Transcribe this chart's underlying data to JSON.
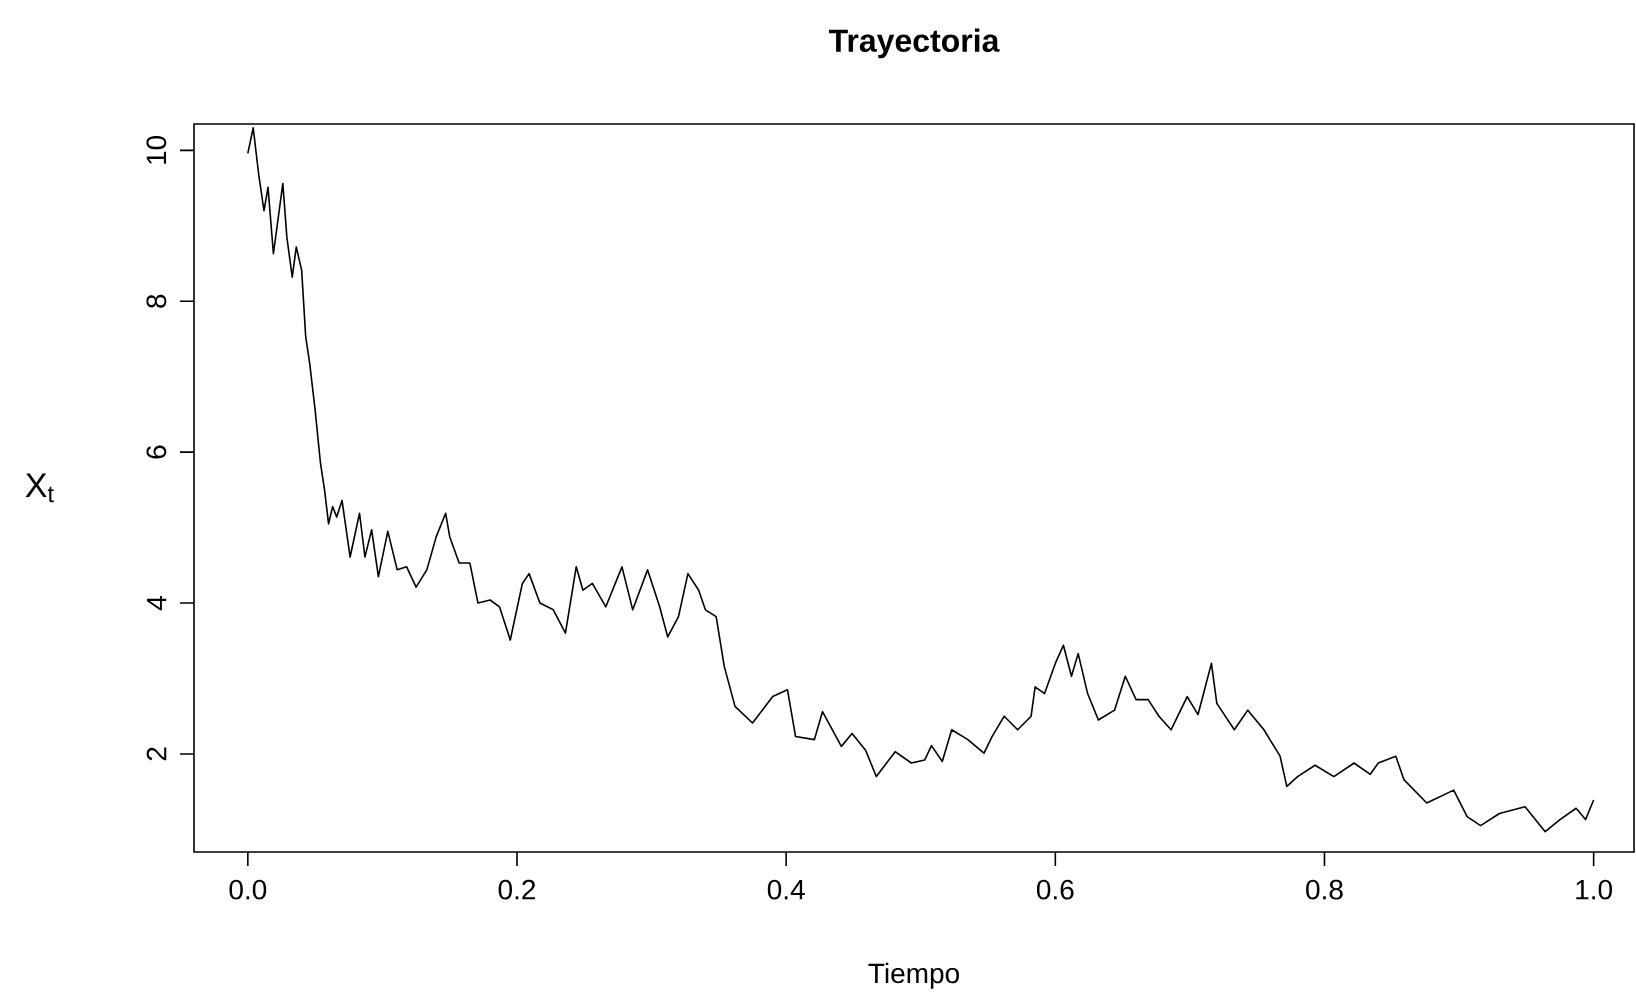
{
  "chart_data": {
    "type": "line",
    "title": "Trayectoria",
    "xlabel": "Tiempo",
    "ylabel": "X$_{t}$",
    "xlim": [
      -0.04,
      1.03
    ],
    "ylim": [
      0.7,
      10.35
    ],
    "xticks": [
      {
        "value": 0,
        "label": "0.0"
      },
      0.2,
      0.4,
      0.6,
      0.8,
      {
        "value": 1,
        "label": "1.0"
      }
    ],
    "yticks": [
      2,
      4,
      6,
      8,
      10
    ],
    "color": "#000000",
    "line_style": "solid",
    "x": [
      0.0,
      0.004,
      0.008,
      0.012,
      0.015,
      0.019,
      0.026,
      0.029,
      0.033,
      0.036,
      0.04,
      0.043,
      0.046,
      0.05,
      0.054,
      0.057,
      0.06,
      0.063,
      0.066,
      0.07,
      0.076,
      0.083,
      0.087,
      0.092,
      0.097,
      0.104,
      0.111,
      0.118,
      0.125,
      0.133,
      0.14,
      0.147,
      0.15,
      0.157,
      0.165,
      0.171,
      0.18,
      0.187,
      0.195,
      0.204,
      0.209,
      0.217,
      0.227,
      0.236,
      0.244,
      0.249,
      0.256,
      0.266,
      0.278,
      0.286,
      0.297,
      0.306,
      0.312,
      0.32,
      0.327,
      0.335,
      0.34,
      0.348,
      0.354,
      0.362,
      0.375,
      0.39,
      0.401,
      0.407,
      0.421,
      0.427,
      0.441,
      0.449,
      0.459,
      0.467,
      0.481,
      0.493,
      0.503,
      0.508,
      0.516,
      0.523,
      0.535,
      0.547,
      0.553,
      0.562,
      0.572,
      0.582,
      0.585,
      0.592,
      0.6,
      0.606,
      0.612,
      0.617,
      0.624,
      0.632,
      0.644,
      0.652,
      0.66,
      0.669,
      0.677,
      0.686,
      0.698,
      0.706,
      0.716,
      0.72,
      0.733,
      0.743,
      0.755,
      0.767,
      0.772,
      0.78,
      0.793,
      0.807,
      0.822,
      0.834,
      0.84,
      0.853,
      0.859,
      0.876,
      0.896,
      0.906,
      0.916,
      0.93,
      0.949,
      0.964,
      0.975,
      0.987,
      0.994,
      1.0
    ],
    "values": [
      9.96,
      10.3,
      9.69,
      9.2,
      9.51,
      8.63,
      9.56,
      8.85,
      8.32,
      8.72,
      8.41,
      7.53,
      7.17,
      6.56,
      5.85,
      5.5,
      5.05,
      5.28,
      5.14,
      5.36,
      4.61,
      5.19,
      4.61,
      4.97,
      4.35,
      4.95,
      4.44,
      4.48,
      4.21,
      4.44,
      4.88,
      5.19,
      4.88,
      4.53,
      4.53,
      4.0,
      4.04,
      3.95,
      3.51,
      4.26,
      4.39,
      4.0,
      3.91,
      3.6,
      4.48,
      4.17,
      4.26,
      3.95,
      4.48,
      3.91,
      4.44,
      3.95,
      3.55,
      3.82,
      4.39,
      4.17,
      3.91,
      3.82,
      3.16,
      2.63,
      2.41,
      2.76,
      2.85,
      2.23,
      2.19,
      2.56,
      2.1,
      2.27,
      2.05,
      1.7,
      2.03,
      1.88,
      1.92,
      2.11,
      1.9,
      2.32,
      2.19,
      2.01,
      2.23,
      2.5,
      2.32,
      2.5,
      2.89,
      2.8,
      3.2,
      3.44,
      3.03,
      3.33,
      2.8,
      2.45,
      2.58,
      3.03,
      2.72,
      2.72,
      2.5,
      2.32,
      2.76,
      2.52,
      3.2,
      2.67,
      2.32,
      2.58,
      2.32,
      1.97,
      1.57,
      1.7,
      1.85,
      1.7,
      1.88,
      1.73,
      1.88,
      1.97,
      1.66,
      1.35,
      1.52,
      1.17,
      1.05,
      1.21,
      1.3,
      0.97,
      1.13,
      1.28,
      1.13,
      1.39
    ]
  }
}
